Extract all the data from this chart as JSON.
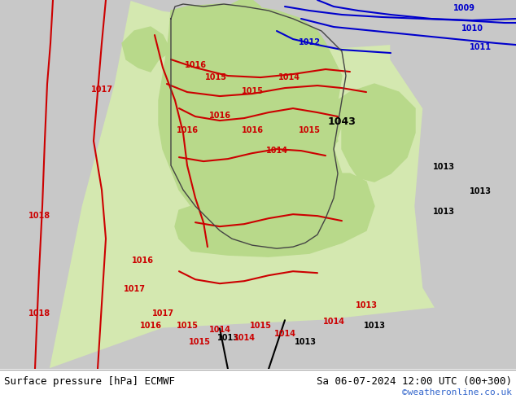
{
  "title_left": "Surface pressure [hPa] ECMWF",
  "title_right": "Sa 06-07-2024 12:00 UTC (00+300)",
  "credit": "©weatheronline.co.uk",
  "bg_color": "#d4e8b0",
  "land_color_green": "#b8d98a",
  "land_color_gray": "#cccccc",
  "sea_color": "#d4e8b0",
  "text_color_black": "#000000",
  "text_color_blue": "#0000cc",
  "text_color_red": "#cc0000",
  "text_color_credit": "#3366cc",
  "footer_bg": "#ffffff",
  "contour_red_color": "#cc0000",
  "contour_blue_color": "#0000cc",
  "contour_black_color": "#000000",
  "pressure_labels_red": [
    "1015",
    "1014",
    "1016",
    "1017",
    "1016",
    "1017",
    "1016",
    "1017",
    "1015",
    "1014",
    "1013",
    "1015",
    "1015",
    "1014",
    "1017"
  ],
  "pressure_labels_blue": [
    "1009",
    "1010",
    "1011",
    "1012"
  ],
  "pressure_labels_black": [
    "1013",
    "1043",
    "1013",
    "1013",
    "1013"
  ],
  "pressure_label_18": "1018",
  "figsize": [
    6.34,
    4.9
  ],
  "dpi": 100
}
